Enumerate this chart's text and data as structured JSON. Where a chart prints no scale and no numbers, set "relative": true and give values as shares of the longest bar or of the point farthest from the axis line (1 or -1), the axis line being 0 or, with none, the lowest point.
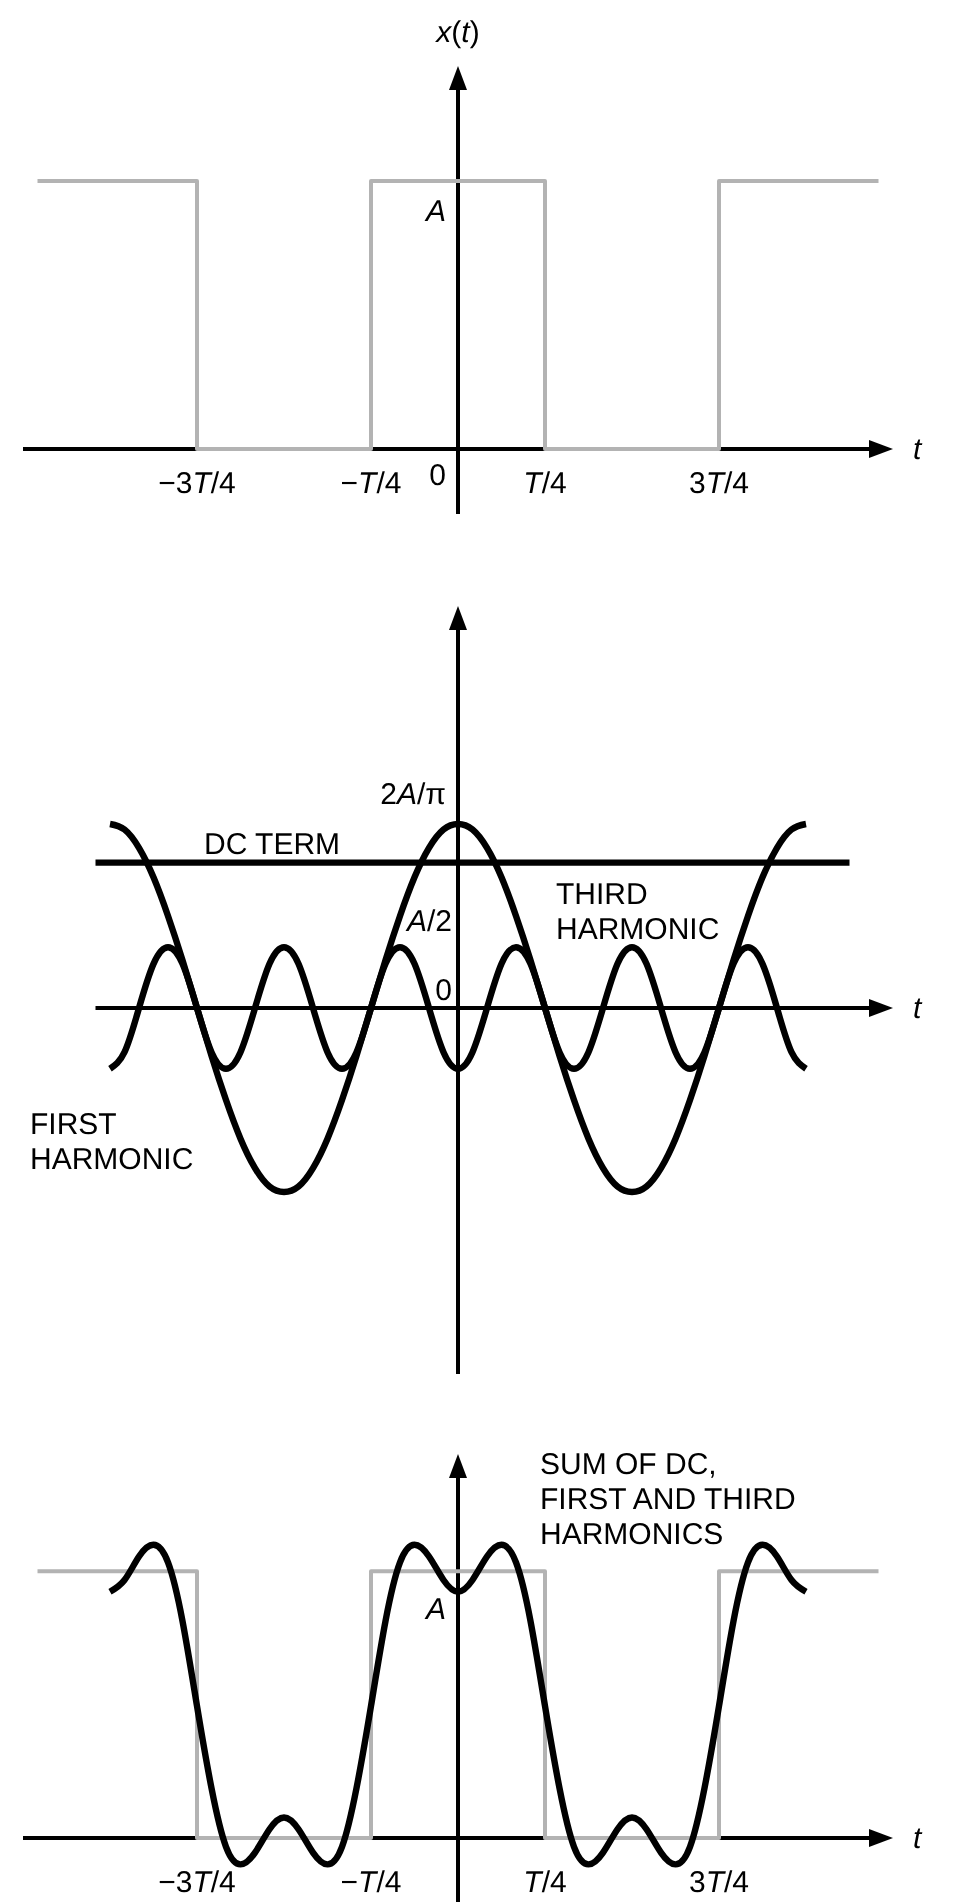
{
  "chart_data": [
    {
      "type": "step",
      "relative": true,
      "ylabel": "x(t)",
      "xlabel": "t",
      "annotations": [
        {
          "text": "A",
          "y": 1
        },
        "0"
      ],
      "categories": [
        null,
        null,
        null,
        null,
        null,
        null,
        null,
        null,
        null,
        null,
        null,
        null,
        "−3T/4",
        null,
        null,
        null,
        null,
        null,
        null,
        null,
        null,
        null,
        null,
        null,
        "−T/4",
        null,
        null,
        null,
        null,
        null,
        null,
        null,
        null,
        null,
        null,
        null,
        "T/4",
        null,
        null,
        null,
        null,
        null,
        null,
        null,
        null,
        null,
        null,
        null,
        "3T/4",
        null,
        null,
        null,
        null,
        null,
        null,
        null,
        null,
        null,
        null,
        null,
        null
      ],
      "series": [
        {
          "color": "#b3b3b3",
          "values": [
            null,
            1,
            1,
            1,
            1,
            1,
            1,
            1,
            1,
            1,
            1,
            1,
            0,
            0,
            0,
            0,
            0,
            0,
            0,
            0,
            0,
            0,
            0,
            0,
            1,
            1,
            1,
            1,
            1,
            1,
            1,
            1,
            1,
            1,
            1,
            1,
            0,
            0,
            0,
            0,
            0,
            0,
            0,
            0,
            0,
            0,
            0,
            0,
            1,
            1,
            1,
            1,
            1,
            1,
            1,
            1,
            1,
            1,
            1,
            1,
            null
          ]
        }
      ]
    },
    {
      "type": "line",
      "relative": true,
      "xlabel": "t",
      "annotations": [
        "2A/π",
        {
          "text": "A/2",
          "y": 0.79
        },
        "0"
      ],
      "categories": [
        null,
        null,
        null,
        null,
        null,
        null,
        null,
        null,
        null,
        null,
        null,
        null,
        null,
        null,
        null,
        null,
        null,
        null,
        null,
        null,
        null,
        null,
        null,
        null,
        null,
        null,
        null,
        null,
        null,
        null,
        null,
        null,
        null,
        null,
        null,
        null,
        null,
        null,
        null,
        null,
        null,
        null,
        null,
        null,
        null,
        null,
        null,
        null,
        null,
        null,
        null,
        null,
        null,
        null,
        null,
        null
      ],
      "series": [
        {
          "name": "DC TERM",
          "color": "#000000",
          "values": [
            0.79,
            0.79,
            0.79,
            0.79,
            0.79,
            0.79,
            0.79,
            0.79,
            0.79,
            0.79,
            0.79,
            0.79,
            0.79,
            0.79,
            0.79,
            0.79,
            0.79,
            0.79,
            0.79,
            0.79,
            0.79,
            0.79,
            0.79,
            0.79,
            0.79,
            0.79,
            0.79,
            0.79,
            0.79,
            0.79,
            0.79,
            0.79,
            0.79,
            0.79,
            0.79,
            0.79,
            0.79,
            0.79,
            0.79,
            0.79,
            0.79,
            0.79,
            0.79,
            0.79,
            0.79,
            0.79,
            0.79,
            0.79,
            0.79,
            0.79,
            0.79,
            0.79,
            0.79,
            null,
            null,
            null
          ]
        },
        {
          "name": "FIRST HARMONIC",
          "color": "#000000",
          "values": [
            null,
            1,
            0.97,
            0.87,
            0.71,
            0.5,
            0.26,
            0,
            -0.26,
            -0.5,
            -0.71,
            -0.87,
            -0.97,
            -1,
            -0.97,
            -0.87,
            -0.71,
            -0.5,
            -0.26,
            0,
            0.26,
            0.5,
            0.71,
            0.87,
            0.97,
            1,
            0.97,
            0.87,
            0.71,
            0.5,
            0.26,
            0,
            -0.26,
            -0.5,
            -0.71,
            -0.87,
            -0.97,
            -1,
            -0.97,
            -0.87,
            -0.71,
            -0.5,
            -0.26,
            0,
            0.26,
            0.5,
            0.71,
            0.87,
            0.97,
            1,
            null,
            null,
            null,
            null,
            null,
            null
          ]
        },
        {
          "name": "THIRD HARMONIC",
          "color": "#000000",
          "values": [
            null,
            -0.33,
            -0.24,
            0,
            0.24,
            0.33,
            0.24,
            0,
            -0.24,
            -0.33,
            -0.24,
            0,
            0.24,
            0.33,
            0.24,
            0,
            -0.24,
            -0.33,
            -0.24,
            0,
            0.24,
            0.33,
            0.24,
            0,
            -0.24,
            -0.33,
            -0.24,
            0,
            0.24,
            0.33,
            0.24,
            0,
            -0.24,
            -0.33,
            -0.24,
            0,
            0.24,
            0.33,
            0.24,
            0,
            -0.24,
            -0.33,
            -0.24,
            0,
            0.24,
            0.33,
            0.24,
            0,
            -0.24,
            -0.33,
            null,
            null,
            null,
            null,
            null,
            null
          ]
        }
      ]
    },
    {
      "type": "line",
      "relative": true,
      "xlabel": "t",
      "annotations": [
        {
          "text": "A",
          "y": 0.91
        }
      ],
      "categories": [
        null,
        null,
        null,
        null,
        null,
        null,
        null,
        null,
        null,
        null,
        null,
        null,
        "−3T/4",
        null,
        null,
        null,
        null,
        null,
        null,
        null,
        null,
        null,
        null,
        null,
        "−T/4",
        null,
        null,
        null,
        null,
        null,
        null,
        null,
        null,
        null,
        null,
        null,
        "T/4",
        null,
        null,
        null,
        null,
        null,
        null,
        null,
        null,
        null,
        null,
        null,
        "3T/4",
        null,
        null,
        null,
        null,
        null,
        null,
        null,
        null,
        null,
        null,
        null,
        null
      ],
      "series": [
        {
          "type": "step",
          "color": "#b3b3b3",
          "values": [
            null,
            0.91,
            0.91,
            0.91,
            0.91,
            0.91,
            0.91,
            0.91,
            0.91,
            0.91,
            0.91,
            0.91,
            0,
            0,
            0,
            0,
            0,
            0,
            0,
            0,
            0,
            0,
            0,
            0,
            0.91,
            0.91,
            0.91,
            0.91,
            0.91,
            0.91,
            0.91,
            0.91,
            0.91,
            0.91,
            0.91,
            0.91,
            0,
            0,
            0,
            0,
            0,
            0,
            0,
            0,
            0,
            0,
            0,
            0,
            0.91,
            0.91,
            0.91,
            0.91,
            0.91,
            0.91,
            0.91,
            0.91,
            0.91,
            0.91,
            0.91,
            0.91,
            null
          ]
        },
        {
          "name": "SUM OF DC, FIRST AND THIRD HARMONICS",
          "color": "#000000",
          "values": [
            null,
            null,
            null,
            null,
            null,
            null,
            0.84,
            0.88,
            0.96,
            1,
            0.94,
            0.74,
            0.45,
            0.17,
            -0.03,
            -0.09,
            -0.05,
            0.03,
            0.07,
            0.03,
            -0.05,
            -0.09,
            -0.03,
            0.17,
            0.45,
            0.74,
            0.94,
            1,
            0.96,
            0.88,
            0.84,
            0.88,
            0.96,
            1,
            0.94,
            0.74,
            0.45,
            0.17,
            -0.03,
            -0.09,
            -0.05,
            0.03,
            0.07,
            0.03,
            -0.05,
            -0.09,
            -0.03,
            0.17,
            0.45,
            0.74,
            0.94,
            1,
            0.96,
            0.88,
            0.84,
            null,
            null,
            null,
            null,
            null,
            null
          ]
        }
      ]
    }
  ]
}
